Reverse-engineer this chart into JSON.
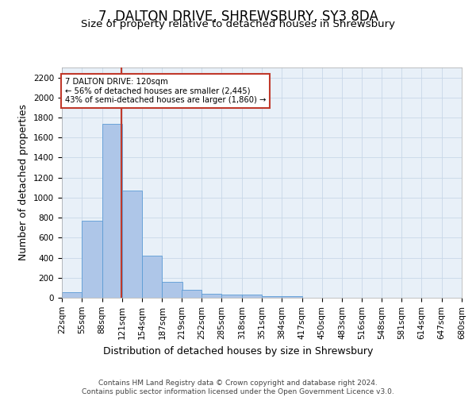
{
  "title": "7, DALTON DRIVE, SHREWSBURY, SY3 8DA",
  "subtitle": "Size of property relative to detached houses in Shrewsbury",
  "xlabel": "Distribution of detached houses by size in Shrewsbury",
  "ylabel": "Number of detached properties",
  "footer_line1": "Contains HM Land Registry data © Crown copyright and database right 2024.",
  "footer_line2": "Contains public sector information licensed under the Open Government Licence v3.0.",
  "bin_labels": [
    "22sqm",
    "55sqm",
    "88sqm",
    "121sqm",
    "154sqm",
    "187sqm",
    "219sqm",
    "252sqm",
    "285sqm",
    "318sqm",
    "351sqm",
    "384sqm",
    "417sqm",
    "450sqm",
    "483sqm",
    "516sqm",
    "548sqm",
    "581sqm",
    "614sqm",
    "647sqm",
    "680sqm"
  ],
  "bin_edges": [
    22,
    55,
    88,
    121,
    154,
    187,
    219,
    252,
    285,
    318,
    351,
    384,
    417,
    450,
    483,
    516,
    548,
    581,
    614,
    647,
    680
  ],
  "bar_heights": [
    55,
    770,
    1740,
    1070,
    420,
    155,
    82,
    42,
    35,
    28,
    15,
    18,
    0,
    0,
    0,
    0,
    0,
    0,
    0,
    0
  ],
  "bar_color": "#aec6e8",
  "bar_edge_color": "#5b9bd5",
  "property_size": 120,
  "property_line_color": "#c0392b",
  "annotation_line1": "7 DALTON DRIVE: 120sqm",
  "annotation_line2": "← 56% of detached houses are smaller (2,445)",
  "annotation_line3": "43% of semi-detached houses are larger (1,860) →",
  "annotation_box_color": "#ffffff",
  "annotation_box_edge_color": "#c0392b",
  "ylim": [
    0,
    2300
  ],
  "yticks": [
    0,
    200,
    400,
    600,
    800,
    1000,
    1200,
    1400,
    1600,
    1800,
    2000,
    2200
  ],
  "grid_color": "#c8d8e8",
  "background_color": "#e8f0f8",
  "title_fontsize": 12,
  "subtitle_fontsize": 9.5,
  "axis_label_fontsize": 9,
  "tick_fontsize": 7.5,
  "footer_fontsize": 6.5
}
